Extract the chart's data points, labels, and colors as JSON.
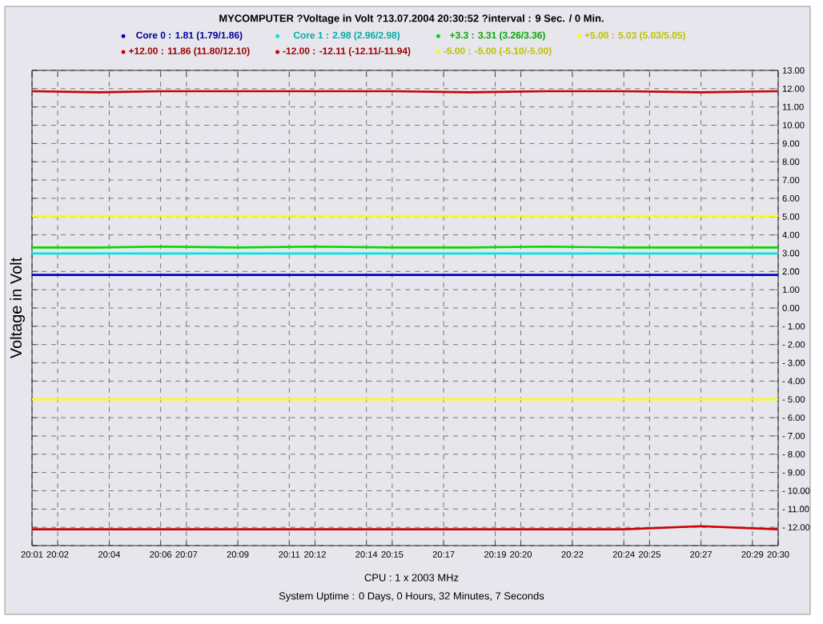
{
  "chart_data": {
    "type": "line",
    "title": "MYCOMPUTER ?Voltage in Volt ?13.07.2004 20:30:52 ?interval : 9 Sec. / 0 Min.",
    "ylabel": "Voltage in Volt",
    "annotations": [
      "CPU : 1 x 2003 MHz",
      "System Uptime :  0 Days, 0 Hours, 32 Minutes, 7 Seconds"
    ],
    "legend": "top",
    "grid": true,
    "line_style": "solid",
    "marker": "none",
    "x": [
      20.0167,
      20.06,
      20.1,
      20.15,
      20.2,
      20.25,
      20.3,
      20.35,
      20.4,
      20.45,
      20.5
    ],
    "xlim": [
      20.0167,
      20.5
    ],
    "xticks": [
      {
        "value": 20.0167,
        "label": "20:01"
      },
      {
        "value": 20.0333,
        "label": "20:02"
      },
      {
        "value": 20.0667,
        "label": "20:04"
      },
      {
        "value": 20.1,
        "label": "20:06"
      },
      {
        "value": 20.1167,
        "label": "20:07"
      },
      {
        "value": 20.15,
        "label": "20:09"
      },
      {
        "value": 20.1833,
        "label": "20:11"
      },
      {
        "value": 20.2,
        "label": "20:12"
      },
      {
        "value": 20.2333,
        "label": "20:14"
      },
      {
        "value": 20.25,
        "label": "20:15"
      },
      {
        "value": 20.2833,
        "label": "20:17"
      },
      {
        "value": 20.3167,
        "label": "20:19"
      },
      {
        "value": 20.3333,
        "label": "20:20"
      },
      {
        "value": 20.3667,
        "label": "20:22"
      },
      {
        "value": 20.4,
        "label": "20:24"
      },
      {
        "value": 20.4167,
        "label": "20:25"
      },
      {
        "value": 20.45,
        "label": "20:27"
      },
      {
        "value": 20.4833,
        "label": "20:29"
      },
      {
        "value": 20.5,
        "label": "20:30"
      }
    ],
    "ylim": [
      -13,
      13
    ],
    "yticks": [
      {
        "value": 13,
        "label": "13.00"
      },
      {
        "value": 12,
        "label": "12.00"
      },
      {
        "value": 11,
        "label": "11.00"
      },
      {
        "value": 10,
        "label": "10.00"
      },
      {
        "value": 9,
        "label": "9.00"
      },
      {
        "value": 8,
        "label": "8.00"
      },
      {
        "value": 7,
        "label": "7.00"
      },
      {
        "value": 6,
        "label": "6.00"
      },
      {
        "value": 5,
        "label": "5.00"
      },
      {
        "value": 4,
        "label": "4.00"
      },
      {
        "value": 3,
        "label": "3.00"
      },
      {
        "value": 2,
        "label": "2.00"
      },
      {
        "value": 1,
        "label": "1.00"
      },
      {
        "value": 0,
        "label": "0.00"
      },
      {
        "value": -1,
        "label": "- 1.00"
      },
      {
        "value": -2,
        "label": "- 2.00"
      },
      {
        "value": -3,
        "label": "- 3.00"
      },
      {
        "value": -4,
        "label": "- 4.00"
      },
      {
        "value": -5,
        "label": "- 5.00"
      },
      {
        "value": -6,
        "label": "- 6.00"
      },
      {
        "value": -7,
        "label": "- 7.00"
      },
      {
        "value": -8,
        "label": "- 8.00"
      },
      {
        "value": -9,
        "label": "- 9.00"
      },
      {
        "value": -10,
        "label": "- 10.00"
      },
      {
        "value": -11,
        "label": "- 11.00"
      },
      {
        "value": -12,
        "label": "- 12.00"
      },
      {
        "value": -13,
        "label": null
      }
    ],
    "series": [
      {
        "name": "Core 0 : 1.81 (1.79/1.86)",
        "color": "#0000cc",
        "values": [
          1.81,
          1.81,
          1.81,
          1.81,
          1.81,
          1.81,
          1.81,
          1.81,
          1.81,
          1.81,
          1.81
        ]
      },
      {
        "name": "Core 1 : 2.98 (2.96/2.98)",
        "color": "#00e5e5",
        "values": [
          2.98,
          2.98,
          2.98,
          2.98,
          2.98,
          2.98,
          2.98,
          2.98,
          2.98,
          2.98,
          2.98
        ]
      },
      {
        "name": "+3.3 : 3.31 (3.26/3.36)",
        "color": "#00dd00",
        "values": [
          3.31,
          3.31,
          3.36,
          3.31,
          3.36,
          3.31,
          3.31,
          3.36,
          3.31,
          3.31,
          3.31
        ]
      },
      {
        "name": "+5.00 : 5.03 (5.03/5.05)",
        "color": "#ffff00",
        "values": [
          5.03,
          5.03,
          5.03,
          5.03,
          5.03,
          5.03,
          5.03,
          5.03,
          5.03,
          5.03,
          5.03
        ]
      },
      {
        "name": "+12.00 : 11.86 (11.80/12.10)",
        "color": "#cc0000",
        "values": [
          11.86,
          11.8,
          11.86,
          11.86,
          11.86,
          11.86,
          11.8,
          11.86,
          11.86,
          11.8,
          11.86
        ]
      },
      {
        "name": "-12.00 : -12.11 (-12.11/-11.94)",
        "color": "#cc0000",
        "values": [
          -12.11,
          -12.11,
          -12.11,
          -12.11,
          -12.11,
          -12.11,
          -12.11,
          -12.11,
          -12.11,
          -11.94,
          -12.11
        ]
      },
      {
        "name": "-5.00 : -5.00 (-5.10/-5.00)",
        "color": "#ffff00",
        "values": [
          -5.0,
          -5.0,
          -5.0,
          -5.0,
          -5.0,
          -5.0,
          -5.0,
          -5.0,
          -5.0,
          -5.0,
          -5.0
        ]
      }
    ]
  }
}
